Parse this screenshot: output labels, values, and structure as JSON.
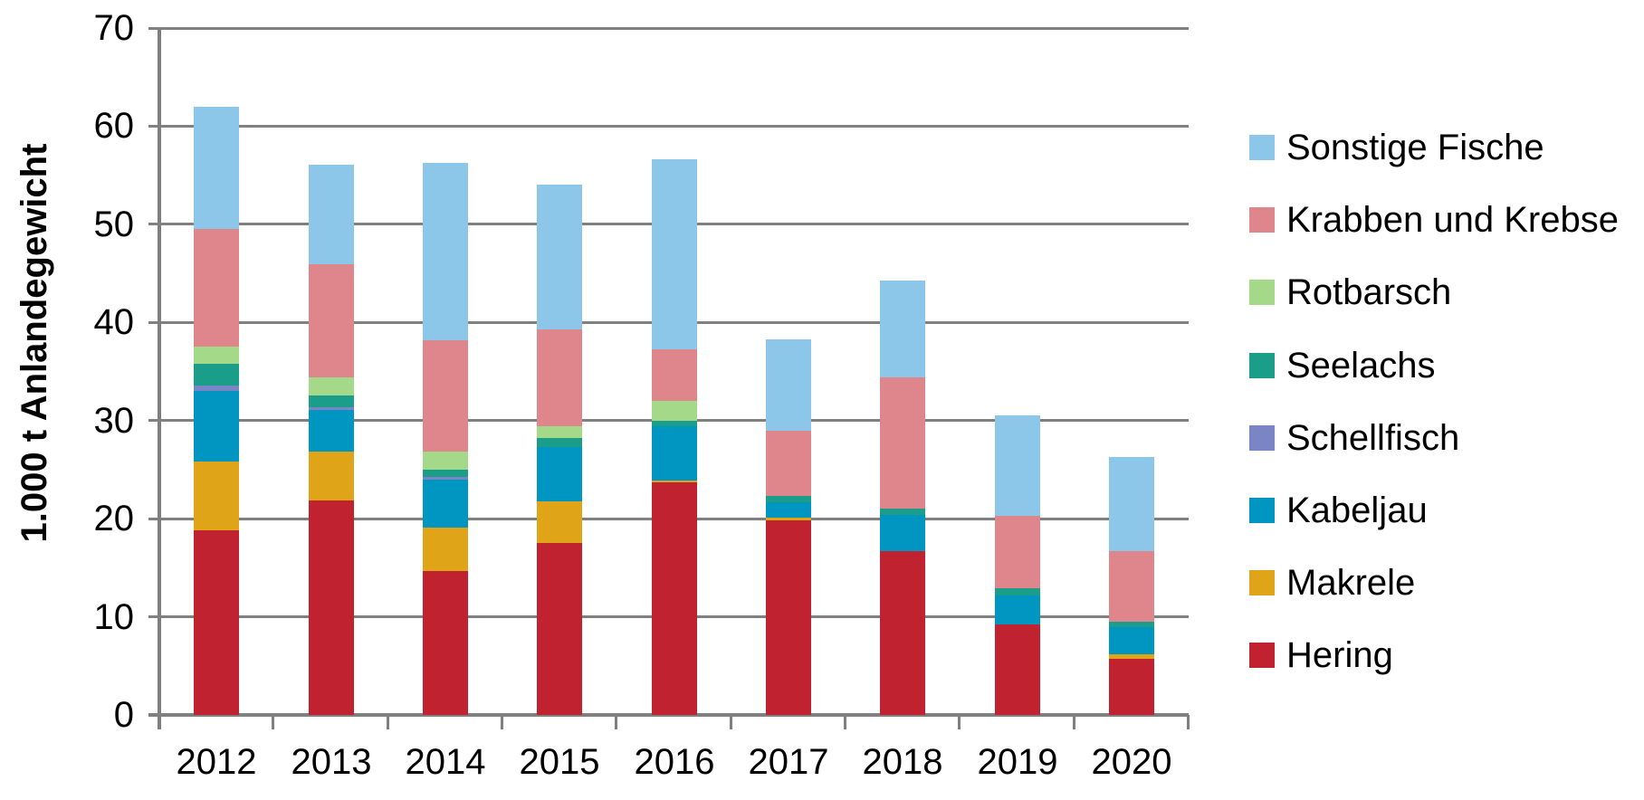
{
  "chart_data": {
    "type": "bar",
    "stacked": true,
    "title": "",
    "xlabel": "",
    "ylabel": "1.000 t Anlandegewicht",
    "ylim": [
      0,
      70
    ],
    "yticks": [
      0,
      10,
      20,
      30,
      40,
      50,
      60,
      70
    ],
    "grid": true,
    "legend_position": "right",
    "legend_order_note": "legend shows series top-to-bottom, reverse of stacking order",
    "grid_color": "#808080",
    "text_color": "#000000",
    "background": "#FFFFFF",
    "categories": [
      "2012",
      "2013",
      "2014",
      "2015",
      "2016",
      "2017",
      "2018",
      "2019",
      "2020"
    ],
    "series": [
      {
        "name": "Hering",
        "color": "#C1222F",
        "values": [
          18.8,
          21.9,
          14.7,
          17.5,
          23.7,
          19.8,
          16.7,
          9.2,
          5.7
        ]
      },
      {
        "name": "Makrele",
        "color": "#DFA417",
        "values": [
          7.0,
          4.9,
          4.4,
          4.3,
          0.2,
          0.3,
          0,
          0,
          0.5
        ]
      },
      {
        "name": "Kabeljau",
        "color": "#0096C1",
        "values": [
          7.2,
          4.3,
          4.9,
          5.5,
          5.5,
          1.6,
          3.7,
          3.0,
          2.7
        ]
      },
      {
        "name": "Schellfisch",
        "color": "#7A85C6",
        "values": [
          0.6,
          0.3,
          0.3,
          0,
          0,
          0,
          0,
          0,
          0
        ]
      },
      {
        "name": "Seelachs",
        "color": "#1A9E89",
        "values": [
          2.2,
          1.2,
          0.7,
          0.9,
          0.6,
          0.6,
          0.6,
          0.7,
          0.6
        ]
      },
      {
        "name": "Rotbarsch",
        "color": "#A5D98A",
        "values": [
          1.7,
          1.8,
          1.8,
          1.2,
          2.0,
          0,
          0,
          0,
          0
        ]
      },
      {
        "name": "Krabben und Krebse",
        "color": "#DE868C",
        "values": [
          12.0,
          11.5,
          11.4,
          9.9,
          5.3,
          6.7,
          13.4,
          7.4,
          7.2
        ]
      },
      {
        "name": "Sonstige Fische",
        "color": "#8CC6E8",
        "values": [
          12.5,
          10.2,
          18.1,
          14.7,
          19.3,
          9.3,
          9.9,
          10.2,
          9.6
        ]
      }
    ],
    "totals": [
      62.0,
      56.1,
      56.3,
      54.0,
      56.6,
      38.3,
      44.3,
      30.5,
      26.3
    ]
  }
}
